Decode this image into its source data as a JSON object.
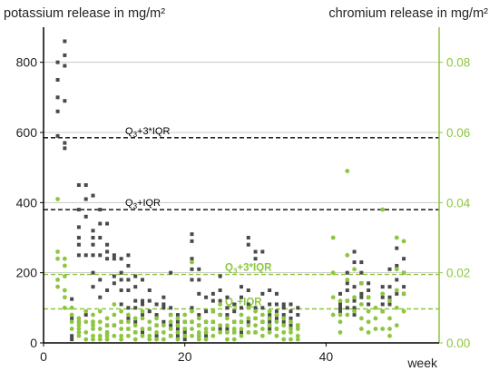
{
  "chart_data": {
    "type": "scatter",
    "left_axis_title": "potassium release in mg/m²",
    "right_axis_title": "chromium release in mg/m²",
    "xlabel": "week",
    "xlim": [
      0,
      56
    ],
    "ylim_left": [
      0,
      900
    ],
    "ylim_right": [
      0,
      0.09
    ],
    "x_ticks": [
      0,
      20,
      40
    ],
    "y_ticks_left": [
      0,
      200,
      400,
      600,
      800
    ],
    "y_ticks_right": [
      0.0,
      0.02,
      0.04,
      0.06,
      0.08
    ],
    "y_tick_labels_right": [
      "0.00",
      "0.02",
      "0.04",
      "0.06",
      "0.08"
    ],
    "grid_y_left": [
      200,
      400,
      600,
      800
    ],
    "colors": {
      "potassium": "#4a4a4a",
      "chromium": "#8dc63f",
      "potassium_threshold": "#000000",
      "chromium_threshold": "#8dc63f",
      "grid": "#c8c8c8"
    },
    "thresholds": [
      {
        "series": "potassium",
        "label_main": "Q",
        "label_sub": "3",
        "label_rest": "+3*IQR",
        "value": 585
      },
      {
        "series": "potassium",
        "label_main": "Q",
        "label_sub": "3",
        "label_rest": "+IQR",
        "value": 380
      },
      {
        "series": "chromium",
        "label_main": "Q",
        "label_sub": "3",
        "label_rest": "+3*IQR",
        "value": 0.0195
      },
      {
        "series": "chromium",
        "label_main": "Q",
        "label_sub": "3",
        "label_rest": "+IQR",
        "value": 0.0097
      }
    ],
    "series": [
      {
        "key": "potassium",
        "axis": "left",
        "marker": "square",
        "x": [
          2,
          2,
          2,
          2,
          2,
          3,
          3,
          3,
          3,
          3,
          3,
          4,
          4,
          4,
          4,
          5,
          5,
          5,
          5,
          5,
          5,
          5,
          6,
          6,
          6,
          6,
          6,
          7,
          7,
          7,
          7,
          7,
          7,
          7,
          7,
          8,
          8,
          8,
          8,
          8,
          8,
          9,
          9,
          9,
          9,
          9,
          9,
          9,
          10,
          10,
          10,
          10,
          10,
          11,
          11,
          11,
          11,
          11,
          11,
          12,
          12,
          12,
          12,
          12,
          12,
          12,
          13,
          13,
          13,
          13,
          13,
          13,
          14,
          14,
          14,
          14,
          14,
          15,
          15,
          15,
          15,
          16,
          16,
          16,
          16,
          17,
          17,
          17,
          17,
          18,
          18,
          18,
          18,
          18,
          19,
          19,
          19,
          19,
          20,
          20,
          20,
          20,
          21,
          21,
          21,
          21,
          21,
          21,
          21,
          22,
          22,
          22,
          22,
          22,
          22,
          23,
          23,
          23,
          23,
          24,
          24,
          24,
          24,
          24,
          25,
          25,
          25,
          25,
          25,
          26,
          26,
          26,
          26,
          27,
          27,
          27,
          27,
          28,
          28,
          28,
          28,
          28,
          29,
          29,
          29,
          29,
          29,
          30,
          30,
          30,
          30,
          30,
          31,
          31,
          31,
          31,
          32,
          32,
          32,
          32,
          32,
          32,
          33,
          33,
          33,
          33,
          33,
          34,
          34,
          34,
          34,
          35,
          35,
          35,
          35,
          36,
          36,
          36,
          42,
          42,
          42,
          42,
          43,
          43,
          43,
          43,
          43,
          44,
          44,
          44,
          44,
          44,
          44,
          45,
          45,
          45,
          45,
          45,
          46,
          46,
          46,
          46,
          48,
          48,
          48,
          48,
          49,
          49,
          49,
          49,
          50,
          50,
          50,
          50,
          51,
          51,
          51,
          51
        ],
        "y": [
          590,
          660,
          700,
          750,
          800,
          555,
          570,
          690,
          790,
          820,
          860,
          125,
          70,
          20,
          10,
          450,
          380,
          330,
          300,
          280,
          250,
          60,
          450,
          410,
          360,
          250,
          80,
          420,
          320,
          300,
          280,
          250,
          200,
          160,
          60,
          380,
          340,
          300,
          250,
          180,
          130,
          340,
          280,
          260,
          240,
          150,
          50,
          30,
          250,
          240,
          190,
          170,
          50,
          240,
          200,
          180,
          150,
          110,
          60,
          250,
          220,
          180,
          150,
          100,
          70,
          40,
          190,
          160,
          120,
          100,
          60,
          30,
          180,
          120,
          110,
          80,
          30,
          150,
          120,
          90,
          40,
          110,
          80,
          50,
          20,
          130,
          110,
          100,
          60,
          200,
          100,
          80,
          50,
          20,
          80,
          60,
          40,
          20,
          60,
          40,
          30,
          10,
          310,
          290,
          240,
          210,
          180,
          100,
          60,
          210,
          180,
          140,
          80,
          50,
          20,
          130,
          90,
          60,
          20,
          140,
          120,
          90,
          60,
          40,
          190,
          150,
          120,
          80,
          40,
          130,
          100,
          80,
          40,
          110,
          90,
          60,
          30,
          160,
          130,
          100,
          60,
          30,
          300,
          280,
          150,
          110,
          60,
          260,
          240,
          100,
          70,
          30,
          260,
          140,
          100,
          60,
          150,
          110,
          80,
          70,
          60,
          40,
          140,
          110,
          90,
          70,
          40,
          110,
          100,
          80,
          60,
          110,
          90,
          70,
          50,
          100,
          80,
          50,
          140,
          110,
          100,
          90,
          200,
          170,
          150,
          120,
          100,
          260,
          230,
          160,
          120,
          100,
          80,
          230,
          200,
          170,
          140,
          130,
          170,
          150,
          130,
          110,
          160,
          130,
          110,
          90,
          210,
          160,
          130,
          110,
          270,
          220,
          180,
          140,
          240,
          200,
          160,
          140
        ]
      },
      {
        "key": "chromium",
        "axis": "right",
        "marker": "circle",
        "x": [
          2,
          2,
          2,
          2,
          2,
          3,
          3,
          3,
          3,
          3,
          3,
          4,
          4,
          4,
          4,
          5,
          5,
          5,
          5,
          5,
          5,
          6,
          6,
          6,
          6,
          7,
          7,
          7,
          7,
          7,
          7,
          8,
          8,
          8,
          8,
          8,
          9,
          9,
          9,
          9,
          9,
          10,
          10,
          10,
          10,
          11,
          11,
          11,
          11,
          11,
          12,
          12,
          12,
          12,
          13,
          13,
          13,
          13,
          14,
          14,
          14,
          14,
          15,
          15,
          15,
          15,
          16,
          16,
          16,
          16,
          17,
          17,
          17,
          18,
          18,
          18,
          18,
          19,
          19,
          19,
          19,
          20,
          20,
          20,
          20,
          21,
          21,
          21,
          21,
          21,
          22,
          22,
          22,
          22,
          22,
          23,
          23,
          23,
          23,
          24,
          24,
          24,
          24,
          25,
          25,
          25,
          25,
          26,
          26,
          26,
          26,
          27,
          27,
          27,
          27,
          28,
          28,
          28,
          28,
          29,
          29,
          29,
          29,
          30,
          30,
          30,
          30,
          31,
          31,
          31,
          31,
          32,
          32,
          32,
          32,
          33,
          33,
          33,
          33,
          34,
          34,
          34,
          34,
          35,
          35,
          35,
          35,
          36,
          36,
          36,
          36,
          41,
          41,
          41,
          41,
          42,
          42,
          42,
          42,
          43,
          43,
          43,
          43,
          43,
          44,
          44,
          44,
          45,
          45,
          45,
          45,
          46,
          46,
          46,
          46,
          47,
          47,
          47,
          48,
          48,
          48,
          48,
          49,
          49,
          49,
          49,
          50,
          50,
          50,
          50,
          50,
          51,
          51,
          51,
          51
        ],
        "y": [
          0.041,
          0.026,
          0.024,
          0.018,
          0.016,
          0.024,
          0.022,
          0.019,
          0.015,
          0.013,
          0.01,
          0.01,
          0.008,
          0.006,
          0.004,
          0.007,
          0.006,
          0.005,
          0.004,
          0.003,
          0.002,
          0.009,
          0.006,
          0.003,
          0.001,
          0.008,
          0.006,
          0.005,
          0.004,
          0.002,
          0.001,
          0.009,
          0.006,
          0.004,
          0.002,
          0.001,
          0.007,
          0.005,
          0.003,
          0.002,
          0.001,
          0.011,
          0.008,
          0.005,
          0.002,
          0.009,
          0.006,
          0.004,
          0.002,
          0.001,
          0.008,
          0.006,
          0.004,
          0.002,
          0.007,
          0.005,
          0.003,
          0.001,
          0.009,
          0.007,
          0.004,
          0.002,
          0.006,
          0.004,
          0.002,
          0.001,
          0.007,
          0.005,
          0.003,
          0.001,
          0.005,
          0.003,
          0.001,
          0.008,
          0.006,
          0.004,
          0.002,
          0.007,
          0.005,
          0.003,
          0.001,
          0.008,
          0.006,
          0.004,
          0.002,
          0.023,
          0.009,
          0.006,
          0.004,
          0.002,
          0.007,
          0.005,
          0.003,
          0.002,
          0.001,
          0.006,
          0.004,
          0.003,
          0.001,
          0.009,
          0.006,
          0.004,
          0.002,
          0.011,
          0.008,
          0.005,
          0.003,
          0.007,
          0.005,
          0.003,
          0.001,
          0.006,
          0.004,
          0.003,
          0.001,
          0.008,
          0.006,
          0.004,
          0.002,
          0.01,
          0.007,
          0.005,
          0.003,
          0.009,
          0.007,
          0.005,
          0.003,
          0.008,
          0.006,
          0.004,
          0.002,
          0.009,
          0.007,
          0.005,
          0.003,
          0.008,
          0.006,
          0.004,
          0.002,
          0.007,
          0.005,
          0.003,
          0.001,
          0.006,
          0.004,
          0.003,
          0.001,
          0.005,
          0.004,
          0.002,
          0.001,
          0.03,
          0.02,
          0.013,
          0.008,
          0.012,
          0.008,
          0.006,
          0.003,
          0.049,
          0.025,
          0.018,
          0.012,
          0.008,
          0.021,
          0.013,
          0.009,
          0.017,
          0.011,
          0.007,
          0.004,
          0.013,
          0.009,
          0.006,
          0.003,
          0.01,
          0.007,
          0.004,
          0.038,
          0.014,
          0.009,
          0.004,
          0.012,
          0.007,
          0.004,
          0.002,
          0.03,
          0.021,
          0.015,
          0.01,
          0.005,
          0.029,
          0.02,
          0.014,
          0.009
        ]
      }
    ]
  }
}
